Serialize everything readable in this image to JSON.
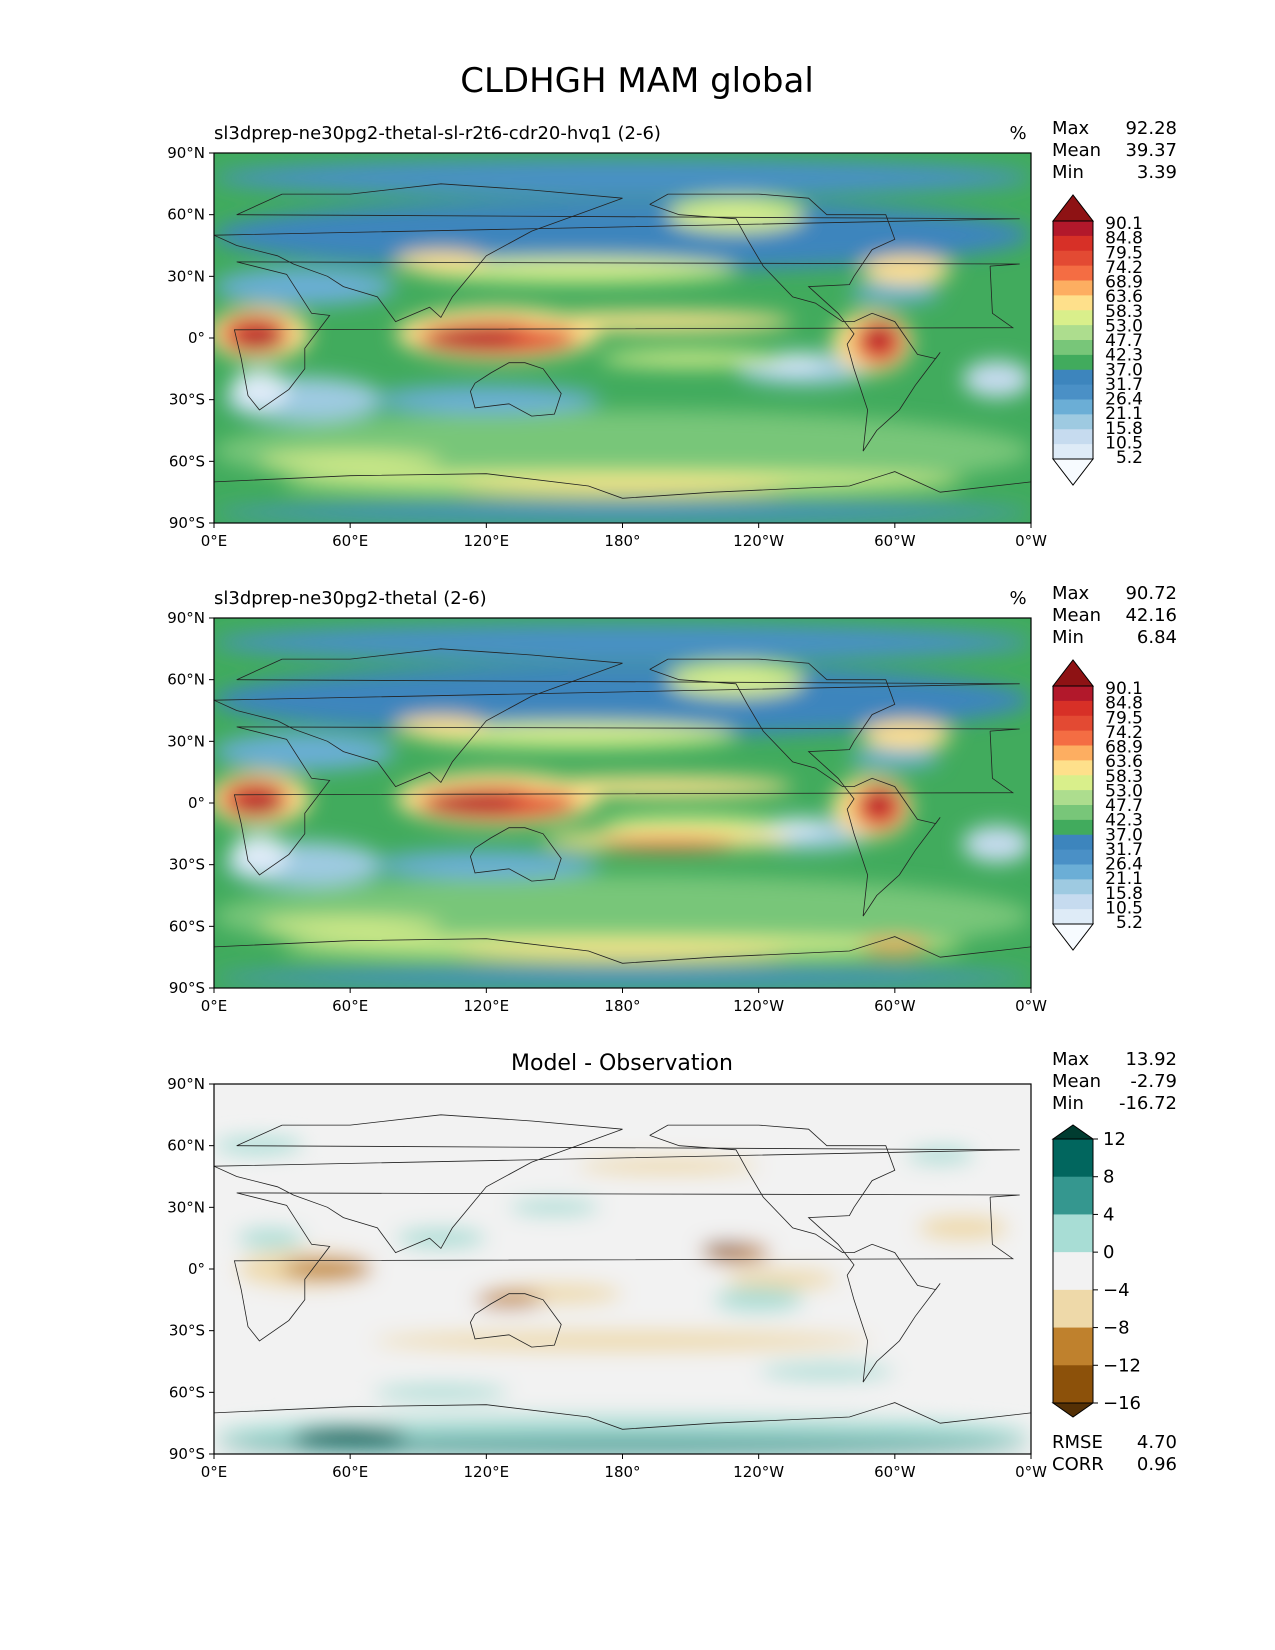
{
  "figure_title": "CLDHGH MAM global",
  "panels": [
    {
      "title_left": "sl3dprep-ne30pg2-thetal-sl-r2t6-cdr20-hvq1 (2-6)",
      "title_center": "",
      "units": "%",
      "stats": {
        "max_label": "Max",
        "max": "92.28",
        "mean_label": "Mean",
        "mean": "39.37",
        "min_label": "Min",
        "min": "3.39"
      }
    },
    {
      "title_left": "sl3dprep-ne30pg2-thetal (2-6)",
      "title_center": "",
      "units": "%",
      "stats": {
        "max_label": "Max",
        "max": "90.72",
        "mean_label": "Mean",
        "mean": "42.16",
        "min_label": "Min",
        "min": "6.84"
      }
    },
    {
      "title_left": "",
      "title_center": "Model - Observation",
      "units": "",
      "stats": {
        "max_label": "Max",
        "max": "13.92",
        "mean_label": "Mean",
        "mean": "-2.79",
        "min_label": "Min",
        "min": "-16.72"
      },
      "extra": {
        "rmse_label": "RMSE",
        "rmse": "4.70",
        "corr_label": "CORR",
        "corr": "0.96"
      }
    }
  ],
  "chart_data": [
    {
      "type": "heatmap",
      "projection": "PlateCarree",
      "title": "sl3dprep-ne30pg2-thetal-sl-r2t6-cdr20-hvq1 (2-6)",
      "units": "%",
      "x_ticks": [
        "0°E",
        "60°E",
        "120°E",
        "180°",
        "120°W",
        "60°W",
        "0°W"
      ],
      "y_ticks": [
        "90°N",
        "60°N",
        "30°N",
        "0°",
        "30°S",
        "60°S",
        "90°S"
      ],
      "colorbar_ticks": [
        "90.1",
        "84.8",
        "79.5",
        "74.2",
        "68.9",
        "63.6",
        "58.3",
        "53.0",
        "47.7",
        "42.3",
        "37.0",
        "31.7",
        "26.4",
        "21.1",
        "15.8",
        "10.5",
        "5.2"
      ],
      "colorbar_colors": [
        "#f7fbff",
        "#deebf7",
        "#c6dbef",
        "#9ecae1",
        "#6baed6",
        "#4a90c6",
        "#3d85bd",
        "#41ab5d",
        "#78c679",
        "#addd8e",
        "#d9ef8b",
        "#fee08b",
        "#fdae61",
        "#f46d43",
        "#e34a33",
        "#d73027",
        "#b2182b",
        "#8e1214"
      ],
      "stats": {
        "max": 92.28,
        "mean": 39.37,
        "min": 3.39
      }
    },
    {
      "type": "heatmap",
      "projection": "PlateCarree",
      "title": "sl3dprep-ne30pg2-thetal (2-6)",
      "units": "%",
      "x_ticks": [
        "0°E",
        "60°E",
        "120°E",
        "180°",
        "120°W",
        "60°W",
        "0°W"
      ],
      "y_ticks": [
        "90°N",
        "60°N",
        "30°N",
        "0°",
        "30°S",
        "60°S",
        "90°S"
      ],
      "colorbar_ticks": [
        "90.1",
        "84.8",
        "79.5",
        "74.2",
        "68.9",
        "63.6",
        "58.3",
        "53.0",
        "47.7",
        "42.3",
        "37.0",
        "31.7",
        "26.4",
        "21.1",
        "15.8",
        "10.5",
        "5.2"
      ],
      "colorbar_colors": [
        "#f7fbff",
        "#deebf7",
        "#c6dbef",
        "#9ecae1",
        "#6baed6",
        "#4a90c6",
        "#3d85bd",
        "#41ab5d",
        "#78c679",
        "#addd8e",
        "#d9ef8b",
        "#fee08b",
        "#fdae61",
        "#f46d43",
        "#e34a33",
        "#d73027",
        "#b2182b",
        "#8e1214"
      ],
      "stats": {
        "max": 90.72,
        "mean": 42.16,
        "min": 6.84
      }
    },
    {
      "type": "heatmap",
      "projection": "PlateCarree",
      "title": "Model - Observation",
      "x_ticks": [
        "0°E",
        "60°E",
        "120°E",
        "180°",
        "120°W",
        "60°W",
        "0°W"
      ],
      "y_ticks": [
        "90°N",
        "60°N",
        "30°N",
        "0°",
        "30°S",
        "60°S",
        "90°S"
      ],
      "colorbar_ticks": [
        "12",
        "8",
        "4",
        "0",
        "−4",
        "−8",
        "−12",
        "−16"
      ],
      "colorbar_colors": [
        "#01665e",
        "#35978f",
        "#a8ddd5",
        "#f2f2f2",
        "#eed9a9",
        "#bf812d",
        "#8c510a"
      ],
      "stats": {
        "max": 13.92,
        "mean": -2.79,
        "min": -16.72,
        "rmse": 4.7,
        "corr": 0.96
      }
    }
  ]
}
